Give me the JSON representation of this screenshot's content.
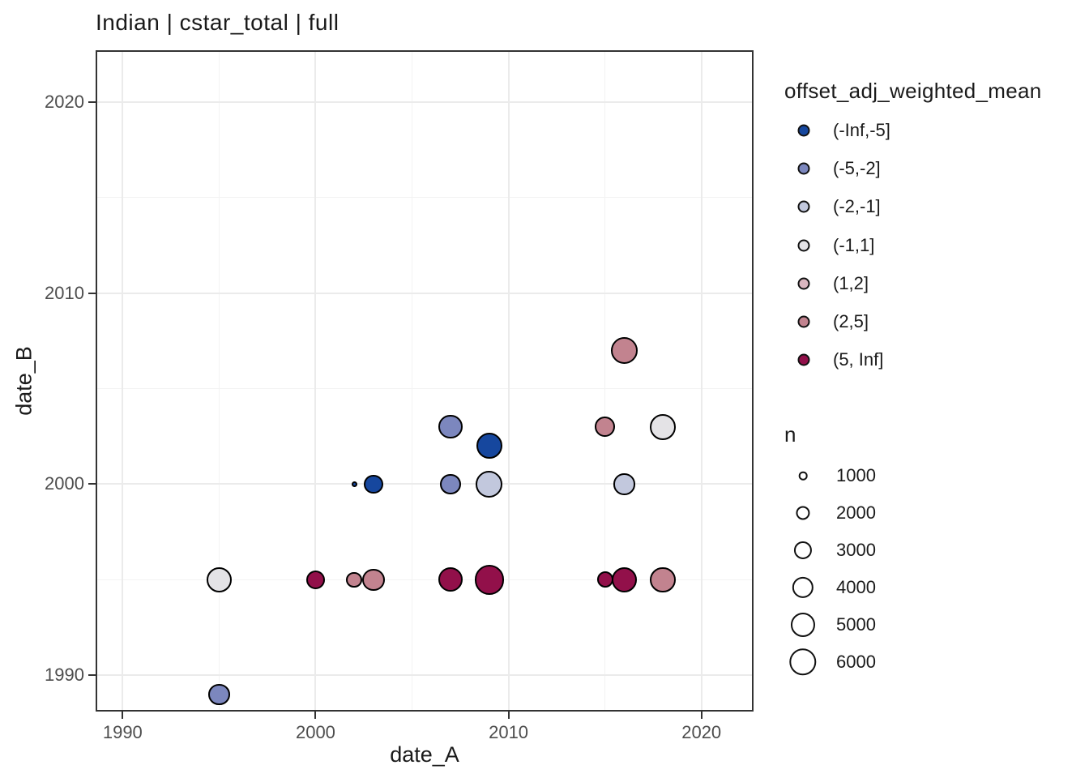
{
  "title": "Indian | cstar_total | full",
  "chart_data": {
    "type": "scatter",
    "title": "Indian | cstar_total | full",
    "xlabel": "date_A",
    "ylabel": "date_B",
    "x_ticks": [
      1990,
      2000,
      2010,
      2020
    ],
    "y_ticks": [
      1990,
      2000,
      2010,
      2020
    ],
    "x_minor_ticks": [
      1995,
      2005,
      2015
    ],
    "y_minor_ticks": [
      1995,
      2005,
      2015
    ],
    "xlim": [
      1988.6,
      2022.7
    ],
    "ylim": [
      1988.1,
      2022.7
    ],
    "grid": true,
    "legend_position": "right",
    "panel_border_color": "#333333",
    "color_legend": {
      "title": "offset_adj_weighted_mean",
      "entries": [
        {
          "label": "(-Inf,-5]",
          "color": "#16479e"
        },
        {
          "label": "(-5,-2]",
          "color": "#7c87be"
        },
        {
          "label": "(-2,-1]",
          "color": "#c2c8dd"
        },
        {
          "label": "(-1,1]",
          "color": "#e4e3e6"
        },
        {
          "label": "(1,2]",
          "color": "#dab6bf"
        },
        {
          "label": "(2,5]",
          "color": "#c2838f"
        },
        {
          "label": "(5, Inf]",
          "color": "#92104a"
        }
      ]
    },
    "size_legend": {
      "title": "n",
      "values": [
        1000,
        2000,
        3000,
        4000,
        5000,
        6000
      ]
    },
    "points": [
      {
        "date_A": 1995,
        "date_B": 1995,
        "bin": "(-1,1]",
        "n": 5400
      },
      {
        "date_A": 1995,
        "date_B": 1989,
        "bin": "(-5,-2]",
        "n": 4000
      },
      {
        "date_A": 2000,
        "date_B": 1995,
        "bin": "(5, Inf]",
        "n": 3300
      },
      {
        "date_A": 2002,
        "date_B": 1995,
        "bin": "(2,5]",
        "n": 2400
      },
      {
        "date_A": 2003,
        "date_B": 1995,
        "bin": "(2,5]",
        "n": 4300
      },
      {
        "date_A": 2002,
        "date_B": 2000,
        "bin": "(-Inf,-5]",
        "n": 600
      },
      {
        "date_A": 2003,
        "date_B": 2000,
        "bin": "(-Inf,-5]",
        "n": 3300
      },
      {
        "date_A": 2007,
        "date_B": 1995,
        "bin": "(5, Inf]",
        "n": 5000
      },
      {
        "date_A": 2009,
        "date_B": 1995,
        "bin": "(5, Inf]",
        "n": 7000
      },
      {
        "date_A": 2007,
        "date_B": 2000,
        "bin": "(-5,-2]",
        "n": 3800
      },
      {
        "date_A": 2009,
        "date_B": 2000,
        "bin": "(-2,-1]",
        "n": 6000
      },
      {
        "date_A": 2007,
        "date_B": 2003,
        "bin": "(-5,-2]",
        "n": 4800
      },
      {
        "date_A": 2009,
        "date_B": 2002,
        "bin": "(-Inf,-5]",
        "n": 5600
      },
      {
        "date_A": 2015,
        "date_B": 1995,
        "bin": "(5, Inf]",
        "n": 2600
      },
      {
        "date_A": 2016,
        "date_B": 1995,
        "bin": "(5, Inf]",
        "n": 5400
      },
      {
        "date_A": 2018,
        "date_B": 1995,
        "bin": "(2,5]",
        "n": 5400
      },
      {
        "date_A": 2016,
        "date_B": 2000,
        "bin": "(-2,-1]",
        "n": 4000
      },
      {
        "date_A": 2015,
        "date_B": 2003,
        "bin": "(2,5]",
        "n": 3600
      },
      {
        "date_A": 2018,
        "date_B": 2003,
        "bin": "(-1,1]",
        "n": 5600
      },
      {
        "date_A": 2016,
        "date_B": 2007,
        "bin": "(2,5]",
        "n": 6000
      }
    ]
  }
}
